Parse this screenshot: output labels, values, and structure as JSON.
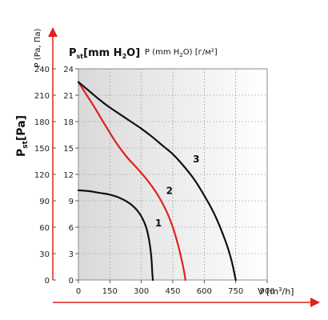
{
  "chart_data": {
    "type": "line",
    "left_axis": {
      "label_main": "P",
      "label_sub": "st",
      "label_unit": "[Pa]",
      "label_alt": "P (Pa, Па)",
      "ticks": [
        0,
        30,
        60,
        90,
        120,
        150,
        180,
        210,
        240
      ]
    },
    "inner_axis": {
      "label_main": "P",
      "label_sub": "st",
      "label_unit": "[mm H",
      "label_unit_sub": "2",
      "label_unit_end": "O]",
      "label_alt": "P (mm H",
      "label_alt_sub": "2",
      "label_alt_end": "O) [г/м²]",
      "ticks": [
        0,
        3,
        6,
        9,
        12,
        15,
        18,
        21,
        24
      ]
    },
    "x_axis": {
      "label_main": "V [m",
      "label_sup": "3",
      "label_end": "/h]",
      "ticks": [
        0,
        150,
        300,
        450,
        600,
        750,
        900
      ],
      "range": [
        0,
        1000
      ]
    },
    "ylim": [
      0,
      24
    ],
    "grid": true,
    "series": [
      {
        "name": "1",
        "color": "#111111",
        "x": [
          0,
          50,
          100,
          150,
          200,
          250,
          290,
          320,
          335,
          345,
          350,
          352,
          355
        ],
        "y": [
          10.2,
          10.1,
          9.9,
          9.7,
          9.3,
          8.6,
          7.6,
          6.2,
          4.8,
          3.2,
          1.8,
          0.9,
          0
        ]
      },
      {
        "name": "2",
        "color": "#e2211c",
        "x": [
          0,
          40,
          80,
          130,
          180,
          230,
          280,
          330,
          380,
          420,
          450,
          475,
          495,
          505,
          510
        ],
        "y": [
          22.5,
          21.0,
          19.5,
          17.5,
          15.6,
          14.0,
          12.7,
          11.3,
          9.6,
          7.8,
          6.0,
          4.0,
          2.0,
          0.8,
          0
        ]
      },
      {
        "name": "3",
        "color": "#111111",
        "x": [
          0,
          50,
          100,
          150,
          200,
          250,
          300,
          350,
          400,
          450,
          500,
          550,
          600,
          650,
          700,
          730,
          750
        ],
        "y": [
          22.5,
          21.5,
          20.5,
          19.6,
          18.8,
          18.0,
          17.2,
          16.3,
          15.3,
          14.3,
          13.0,
          11.5,
          9.6,
          7.4,
          4.5,
          2.2,
          0
        ]
      }
    ]
  }
}
